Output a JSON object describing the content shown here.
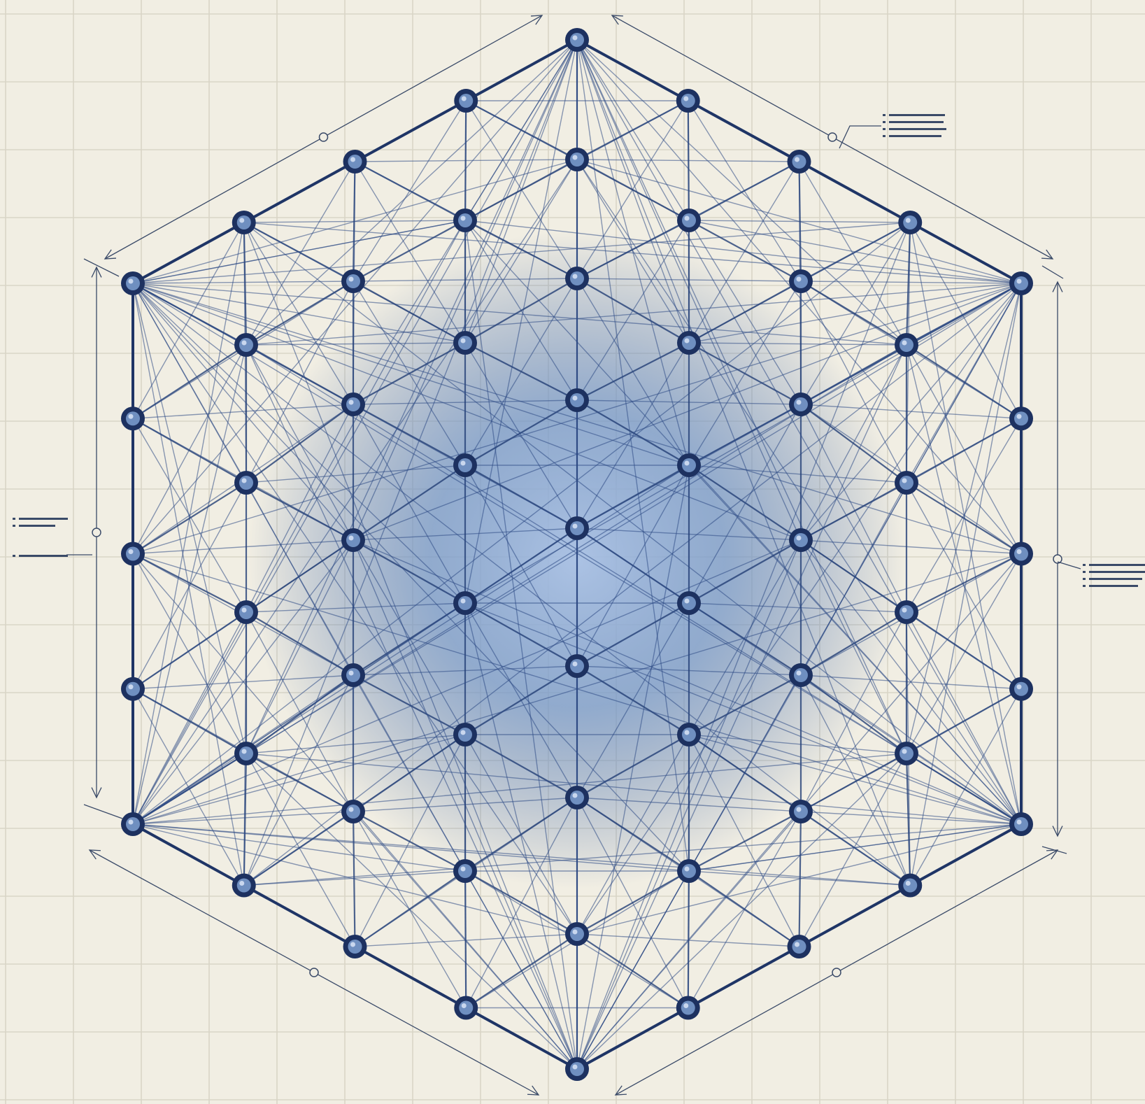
{
  "diagram": {
    "type": "network-graph",
    "shape": "hexagon",
    "colors": {
      "background": "#f1eee3",
      "grid": "#d9d5c7",
      "edges": "#2d4b85",
      "boundary": "#1f3566",
      "node": "#1d3160",
      "glow": "#7fa0d2"
    }
  }
}
